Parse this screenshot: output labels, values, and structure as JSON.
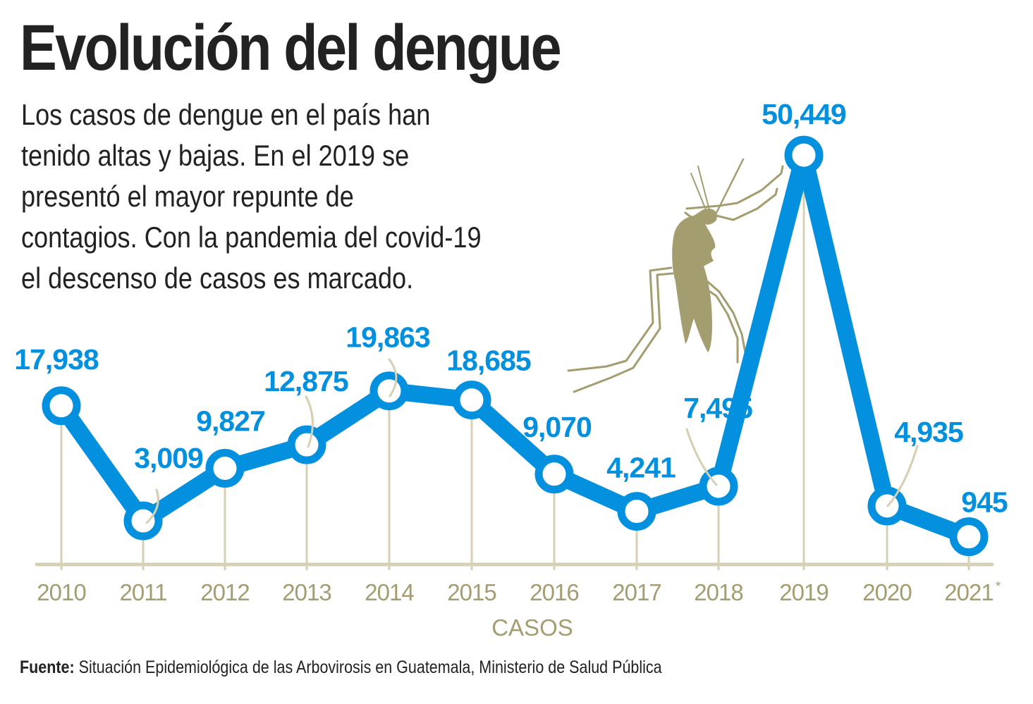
{
  "title": "Evolución del dengue",
  "subtitle_lines": [
    "Los casos de dengue en el país han",
    "tenido altas y bajas. En el 2019 se",
    "presentó el mayor repunte de",
    "contagios. Con la pandemia del covid-19",
    "el descenso de casos es marcado."
  ],
  "colors": {
    "line": "#0390de",
    "label": "#0390de",
    "axis": "#d6d0b5",
    "axis_text": "#a49d70",
    "mosquito": "#a49d70",
    "text": "#222222"
  },
  "chart_data": {
    "type": "line",
    "title": "Evolución del dengue",
    "xlabel": "CASOS",
    "ylabel": "",
    "categories": [
      "2010",
      "2011",
      "2012",
      "2013",
      "2014",
      "2015",
      "2016",
      "2017",
      "2018",
      "2019",
      "2020",
      "2021"
    ],
    "category_notes": {
      "2021": "*"
    },
    "series": [
      {
        "name": "Casos de dengue",
        "values": [
          17938,
          3009,
          9827,
          12875,
          19863,
          18685,
          9070,
          4241,
          7495,
          50449,
          4935,
          945
        ],
        "labels": [
          "17,938",
          "3,009",
          "9,827",
          "12,875",
          "19,863",
          "18,685",
          "9,070",
          "4,241",
          "7,495",
          "50,449",
          "4,935",
          "945"
        ]
      }
    ],
    "ylim": [
      0,
      55000
    ],
    "grid": false,
    "legend": "none"
  },
  "source": {
    "label": "Fuente:",
    "text": "Situación Epidemiológica de las Arbovirosis en Guatemala, Ministerio de Salud Pública"
  }
}
